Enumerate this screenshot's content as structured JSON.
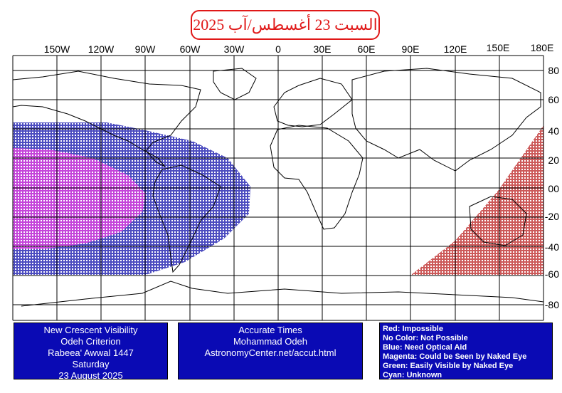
{
  "banner": {
    "date_text": "السبت 23 أغسطس/آب 2025",
    "color": "#e01818"
  },
  "map": {
    "lon_labels": [
      "150W",
      "120W",
      "90W",
      "60W",
      "30W",
      "0",
      "30E",
      "60E",
      "90E",
      "120E",
      "150E",
      "180E"
    ],
    "lat_labels": [
      "80",
      "60",
      "40",
      "20",
      "00",
      "-20",
      "-40",
      "-60",
      "-80"
    ],
    "zone_colors": {
      "magenta": "#e040e0",
      "blue": "#2020b0",
      "red": "#c03030"
    }
  },
  "panel_left": {
    "lines": [
      "New Crescent Visibility",
      "Odeh Criterion",
      "Rabeea' Awwal 1447",
      "Saturday",
      "23 August 2025"
    ]
  },
  "panel_middle": {
    "lines": [
      "Accurate Times",
      "Mohammad Odeh",
      "AstronomyCenter.net/accut.html"
    ]
  },
  "panel_legend": {
    "lines": [
      "Red: Impossible",
      "No Color: Not Possible",
      "Blue: Need Optical Aid",
      "Magenta: Could be Seen by Naked Eye",
      "Green: Easily Visible by Naked Eye",
      "Cyan: Unknown"
    ]
  },
  "colors": {
    "panel_bg": "#0a0ab4",
    "panel_text": "#ffffff"
  }
}
